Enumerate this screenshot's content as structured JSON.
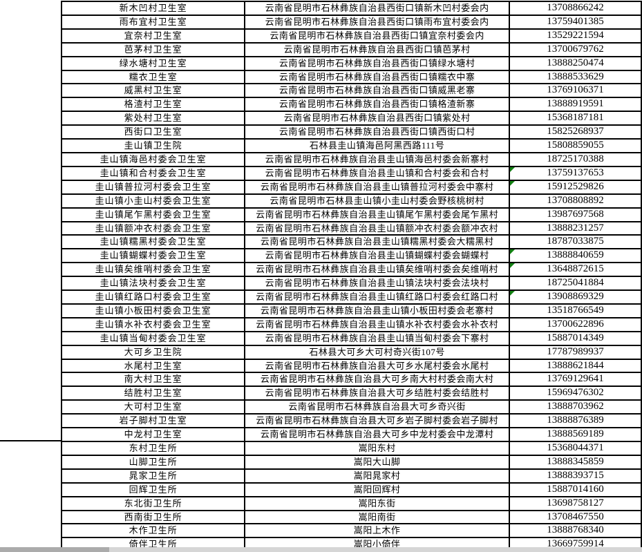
{
  "colors": {
    "border": "#000000",
    "flag_green": "#128212",
    "scrollbar_track": "#d6d6d6",
    "scrollbar_thumb": "#ababab"
  },
  "left_margin": {
    "upper_cell_text": "",
    "lower_cell_text": "",
    "section_break_after_row": 32
  },
  "table": {
    "columns": [
      "clinic-name",
      "address",
      "phone"
    ],
    "rows": [
      {
        "name": "新木凹村卫生室",
        "address": "云南省昆明市石林彝族自治县西街口镇新木凹村委会内",
        "phone": "13708866242",
        "flagged": false
      },
      {
        "name": "雨布宜村卫生室",
        "address": "云南省昆明市石林彝族自治县西街口镇雨布宜村委会内",
        "phone": "13759401385",
        "flagged": false
      },
      {
        "name": "宜奈村卫生室",
        "address": "云南省昆明市石林彝族自治县西街口镇宜奈村委会内",
        "phone": "13529221594",
        "flagged": false
      },
      {
        "name": "芭茅村卫生室",
        "address": "云南省昆明市石林彝族自治县西街口镇芭茅村",
        "phone": "13700679762",
        "flagged": false
      },
      {
        "name": "绿水塘村卫生室",
        "address": "云南省昆明市石林彝族自治县西街口镇绿水塘村",
        "phone": "13888250474",
        "flagged": false
      },
      {
        "name": "糯衣卫生室",
        "address": "云南省昆明市石林彝族自治县西街口镇糯衣中寨",
        "phone": "13888533629",
        "flagged": false
      },
      {
        "name": "威黑村卫生室",
        "address": "云南省昆明市石林彝族自治县西街口镇威黑老寨",
        "phone": "13769106371",
        "flagged": false
      },
      {
        "name": "格渣村卫生室",
        "address": "云南省昆明市石林彝族自治县西街口镇格渣新寨",
        "phone": "13888919591",
        "flagged": false
      },
      {
        "name": "紫处村卫生室",
        "address": "云南省昆明市石林彝族自治县西街口镇紫处村",
        "phone": "15368187181",
        "flagged": false
      },
      {
        "name": "西街口卫生室",
        "address": "云南省昆明市石林彝族自治县西街口镇西街口村",
        "phone": "15825268937",
        "flagged": false
      },
      {
        "name": "圭山镇卫生院",
        "address": "石林县圭山镇海邑阿黑西路111号",
        "phone": "15808859055",
        "flagged": false
      },
      {
        "name": "圭山镇海邑村委会卫生室",
        "address": "云南省昆明市石林彝族自治县圭山镇海邑村委会新寨村",
        "phone": "18725170388",
        "flagged": false
      },
      {
        "name": "圭山镇和合村委会卫生室",
        "address": "云南省昆明市石林彝族自治县圭山镇和合村委会和合村",
        "phone": "13759137653",
        "flagged": true
      },
      {
        "name": "圭山镇普拉河村委会卫生室",
        "address": "云南省昆明市石林彝族自治县圭山镇普拉河村委会中寨村",
        "phone": "15912529826",
        "flagged": true
      },
      {
        "name": "圭山镇小圭山村委会卫生室",
        "address": "云南省昆明市石林县圭山镇小圭山村委会野核桃树村",
        "phone": "13708808892",
        "flagged": false
      },
      {
        "name": "圭山镇尾乍黑村委会卫生室",
        "address": "云南省昆明市石林彝族自治县圭山镇尾乍黑村委会尾乍黑村",
        "phone": "13987697568",
        "flagged": false
      },
      {
        "name": "圭山镇额冲衣村委会卫生室",
        "address": "云南省昆明市石林彝族自治县圭山镇额冲衣村委会额冲衣村",
        "phone": "13888231257",
        "flagged": false
      },
      {
        "name": "圭山镇糯黑村委会卫生室",
        "address": "云南省昆明市石林彝族自治县圭山镇糯黑村委会大糯黑村",
        "phone": "18787033875",
        "flagged": false
      },
      {
        "name": "圭山镇蝴蝶村委会卫生室",
        "address": "云南省昆明市石林彝族自治县圭山镇蝴蝶村委会蝴蝶村",
        "phone": "13888840659",
        "flagged": true
      },
      {
        "name": "圭山镇矣维哨村委会卫生室",
        "address": "云南省昆明市石林彝族自治县圭山镇矣维哨村委会矣维哨村",
        "phone": "13648872615",
        "flagged": true
      },
      {
        "name": "圭山镇法块村委会卫生室",
        "address": "云南省昆明市石林彝族自治县圭山镇法块村委会法块村",
        "phone": "18725041884",
        "flagged": false
      },
      {
        "name": "圭山镇红路口村委会卫生室",
        "address": "云南省昆明市石林彝族自治县圭山镇红路口村委会红路口村",
        "phone": "13908869329",
        "flagged": true
      },
      {
        "name": "圭山镇小板田村委会卫生室",
        "address": "云南省昆明市石林彝族自治县圭山镇小板田村委会老寨村",
        "phone": "13518766549",
        "flagged": false
      },
      {
        "name": "圭山镇水补衣村委会卫生室",
        "address": "云南省昆明市石林彝族自治县圭山镇水补衣村委会水补衣村",
        "phone": "13700622896",
        "flagged": false
      },
      {
        "name": "圭山镇当甸村委会卫生室",
        "address": "云南省昆明市石林彝族自治县圭山镇当甸村委会下寨村",
        "phone": "15887014349",
        "flagged": false
      },
      {
        "name": "大可乡卫生院",
        "address": "石林县大可乡大可村奇兴街107号",
        "phone": "17787989937",
        "flagged": false
      },
      {
        "name": "水尾村卫生室",
        "address": "云南省昆明市石林彝族自治县大可乡水尾村委会水尾村",
        "phone": "13888621844",
        "flagged": false
      },
      {
        "name": "南大村卫生室",
        "address": "云南省昆明市石林彝族自治县大可乡南大村村委会南大村",
        "phone": "13769129641",
        "flagged": false
      },
      {
        "name": "结胜村卫生室",
        "address": "云南省昆明市石林彝族自治县大可乡结胜村委会结胜村",
        "phone": "15969476302",
        "flagged": false
      },
      {
        "name": "大可村卫生室",
        "address": "云南省昆明市石林彝族自治县大可乡奇兴街",
        "phone": "13888703962",
        "flagged": false
      },
      {
        "name": "岩子脚村卫生室",
        "address": "云南省昆明市石林彝族自治县大可乡岩子脚村委会岩子脚村",
        "phone": "13888876389",
        "flagged": false
      },
      {
        "name": "中龙村卫生室",
        "address": "云南省昆明市石林彝族自治县大可乡中龙村委会中龙潭村",
        "phone": "13888569189",
        "flagged": false
      },
      {
        "name": "东村卫生所",
        "address": "嵩阳东村",
        "phone": "15368044371",
        "flagged": false
      },
      {
        "name": "山脚卫生所",
        "address": "嵩阳大山脚",
        "phone": "13888345859",
        "flagged": false
      },
      {
        "name": "晁家卫生所",
        "address": "嵩阳晁家村",
        "phone": "13888393715",
        "flagged": false
      },
      {
        "name": "回辉卫生所",
        "address": "嵩阳回辉村",
        "phone": "15887014160",
        "flagged": false
      },
      {
        "name": "东北街卫生所",
        "address": "嵩阳东街",
        "phone": "13698758127",
        "flagged": false
      },
      {
        "name": "西南街卫生所",
        "address": "嵩阳南街",
        "phone": "13708467550",
        "flagged": false
      },
      {
        "name": "木作卫生所",
        "address": "嵩阳上木作",
        "phone": "13888768340",
        "flagged": false
      },
      {
        "name": "倚伴卫生所",
        "address": "嵩阳小倚伴",
        "phone": "13669759914",
        "flagged": false
      }
    ]
  }
}
